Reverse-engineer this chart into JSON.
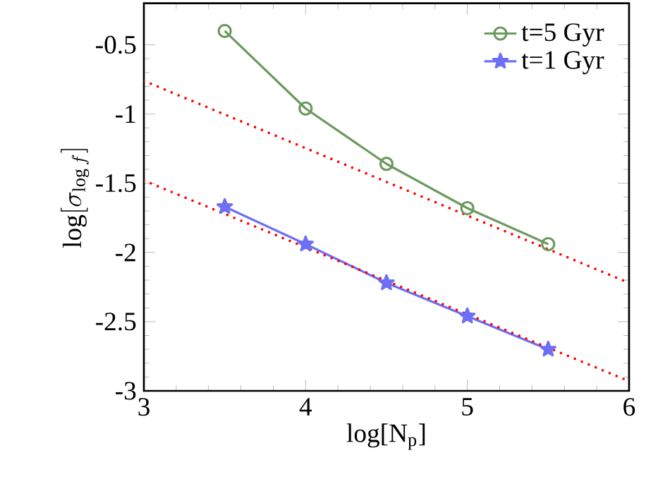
{
  "chart_data": {
    "type": "line",
    "xlabel": "log[N$_{p}$]",
    "ylabel": "\\log[\\sigma_{\\log f}]",
    "xlim": [
      3,
      6
    ],
    "ylim": [
      -3,
      -0.2
    ],
    "xticks": [
      3,
      4,
      5,
      6
    ],
    "yticks": [
      -3,
      -2.5,
      -2,
      -1.5,
      -1,
      -0.5
    ],
    "legend": "top right",
    "grid": false,
    "series": [
      {
        "name": "t=5 Gyr",
        "color": "#6a9a5e",
        "marker": "circle",
        "line_style": "solid",
        "x": [
          3.5,
          4,
          4.5,
          5,
          5.5
        ],
        "values": [
          -0.4,
          -0.96,
          -1.36,
          -1.68,
          -1.94
        ]
      },
      {
        "name": "t=1 Gyr",
        "color": "#6f6ff5",
        "marker": "star",
        "line_style": "solid",
        "x": [
          3.5,
          4,
          4.5,
          5,
          5.5
        ],
        "values": [
          -1.67,
          -1.94,
          -2.22,
          -2.46,
          -2.7
        ]
      },
      {
        "color": "#ff0000",
        "marker": "none",
        "line_style": "dotted",
        "x": [
          3,
          6
        ],
        "values": [
          -0.76,
          -2.22
        ]
      },
      {
        "color": "#ff0000",
        "marker": "none",
        "line_style": "dotted",
        "x": [
          3,
          6
        ],
        "values": [
          -1.48,
          -2.93
        ]
      }
    ]
  }
}
